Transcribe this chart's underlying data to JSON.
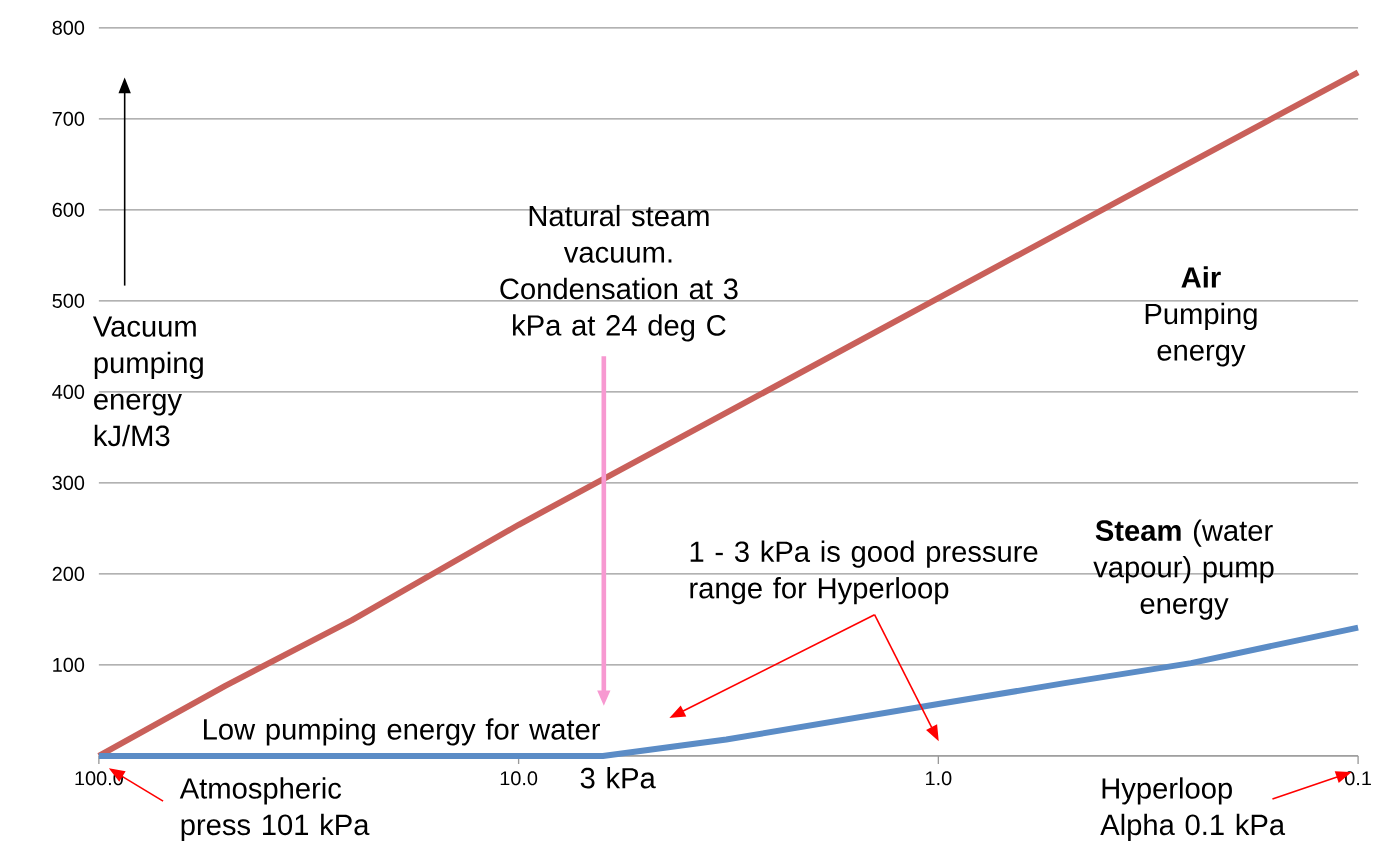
{
  "chart_data": {
    "type": "line",
    "ylabel": "Vacuum pumping energy kJ/M3",
    "log": "x",
    "grid": "y",
    "xlim": [
      100,
      0.1
    ],
    "ylim": [
      0,
      800
    ],
    "xticks": [
      {
        "value": 100,
        "label": "100.0"
      },
      {
        "value": 10,
        "label": "10.0"
      },
      {
        "value": 1,
        "label": "1.0"
      },
      {
        "value": 0.1,
        "label": "0.1"
      }
    ],
    "yticks": [
      {
        "value": 0,
        "label": null
      },
      100,
      200,
      300,
      400,
      500,
      600,
      700,
      800
    ],
    "series": [
      {
        "name": "**Air** Pumping energy",
        "color": "#c9605a",
        "x": [
          100,
          50,
          25,
          10,
          3,
          1,
          0.3,
          0.1
        ],
        "values": [
          0,
          77,
          149,
          254,
          384,
          503,
          633,
          751
        ]
      },
      {
        "name": "**Steam** (water vapour) pump energy",
        "color": "#5b8cc6",
        "x": [
          100,
          6.3,
          3.2,
          1,
          0.5,
          0.25,
          0.1
        ],
        "values": [
          0,
          0,
          18,
          57,
          80,
          102,
          141
        ]
      }
    ],
    "annotations": [
      "Natural steam vacuum. Condensation at 3 kPa at 24 deg C",
      "1 - 3 kPa is good pressure range for Hyperloop",
      "Low pumping energy for water",
      "3 kPa",
      "Atmospheric press 101 kPa",
      "Hyperloop Alpha 0.1 kPa"
    ]
  }
}
